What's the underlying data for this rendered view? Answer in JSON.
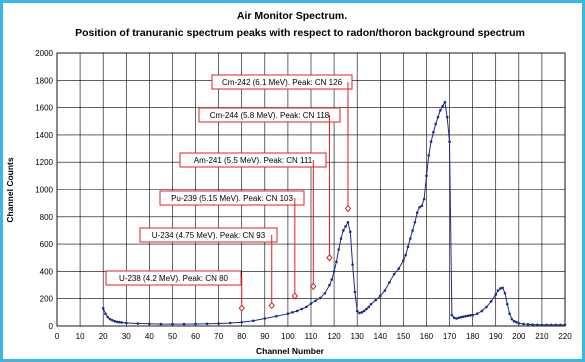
{
  "chart_data": {
    "type": "line",
    "title": "Air Monitor Spectrum.",
    "subtitle": "Position of tranuranic  spectrum peaks with respect to radon/thoron background  spectrum",
    "xlabel": "Channel Number",
    "ylabel": "Channel Counts",
    "xlim": [
      0,
      220
    ],
    "ylim": [
      0,
      2000
    ],
    "xticks": [
      0,
      10,
      20,
      30,
      40,
      50,
      60,
      70,
      80,
      90,
      100,
      110,
      120,
      130,
      140,
      150,
      160,
      170,
      180,
      190,
      200,
      210,
      220
    ],
    "yticks": [
      0,
      200,
      400,
      600,
      800,
      1000,
      1200,
      1400,
      1600,
      1800,
      2000
    ],
    "grid": "vertical and horizontal",
    "colors": {
      "series": "#1f2a8c",
      "annotation": "#e02020",
      "frame": "#38b6e8"
    },
    "series": [
      {
        "x": [
          20,
          21,
          22,
          23,
          24,
          25,
          26,
          27,
          28,
          30,
          35,
          40,
          45,
          50,
          55,
          60,
          65,
          70,
          75,
          80,
          85,
          90,
          95,
          100,
          102,
          104,
          106,
          108,
          110,
          112,
          114,
          116,
          118,
          119,
          120,
          121,
          122,
          123,
          124,
          125,
          126,
          127,
          128,
          129,
          130,
          131,
          132,
          133,
          134,
          135,
          136,
          138,
          140,
          142,
          144,
          146,
          148,
          150,
          151,
          152,
          153,
          154,
          155,
          156,
          157,
          158,
          159,
          160,
          161,
          162,
          163,
          164,
          165,
          166,
          167,
          168,
          169,
          170,
          171,
          172,
          173,
          174,
          175,
          176,
          177,
          178,
          179,
          180,
          182,
          184,
          186,
          188,
          190,
          191,
          192,
          193,
          194,
          195,
          196,
          197,
          198,
          199,
          200,
          202,
          204,
          206,
          208,
          210,
          212,
          214,
          216,
          218,
          220
        ],
        "y": [
          130,
          90,
          65,
          50,
          42,
          35,
          30,
          28,
          26,
          22,
          18,
          16,
          14,
          14,
          14,
          15,
          16,
          18,
          22,
          28,
          38,
          55,
          72,
          90,
          100,
          110,
          125,
          140,
          165,
          185,
          205,
          240,
          300,
          340,
          400,
          470,
          560,
          640,
          700,
          730,
          760,
          690,
          450,
          250,
          110,
          95,
          100,
          110,
          125,
          140,
          160,
          190,
          220,
          260,
          320,
          380,
          420,
          480,
          520,
          580,
          640,
          700,
          760,
          830,
          870,
          880,
          930,
          1100,
          1250,
          1350,
          1420,
          1480,
          1530,
          1580,
          1610,
          1640,
          1530,
          1350,
          80,
          60,
          55,
          60,
          65,
          68,
          72,
          75,
          78,
          80,
          90,
          110,
          140,
          180,
          230,
          260,
          275,
          280,
          240,
          160,
          90,
          50,
          35,
          28,
          20,
          15,
          12,
          10,
          9,
          8,
          8,
          8,
          8,
          8,
          8
        ]
      }
    ],
    "annotations": [
      {
        "label": "U-238 (4.2 MeV). Peak: CN 80",
        "channel": 80,
        "point_y": 130
      },
      {
        "label": "U-234 (4.75 MeV). Peak: CN 93",
        "channel": 93,
        "point_y": 150
      },
      {
        "label": "Pu-239 (5.15 MeV). Peak: CN 103",
        "channel": 103,
        "point_y": 220
      },
      {
        "label": "Am-241 (5.5 MeV). Peak: CN 111",
        "channel": 111,
        "point_y": 290
      },
      {
        "label": "Cm-244 (5.8 MeV). Peak: CN 118",
        "channel": 118,
        "point_y": 500
      },
      {
        "label": "Cm-242 (6.1 MeV). Peak: CN 126",
        "channel": 126,
        "point_y": 860
      }
    ]
  }
}
